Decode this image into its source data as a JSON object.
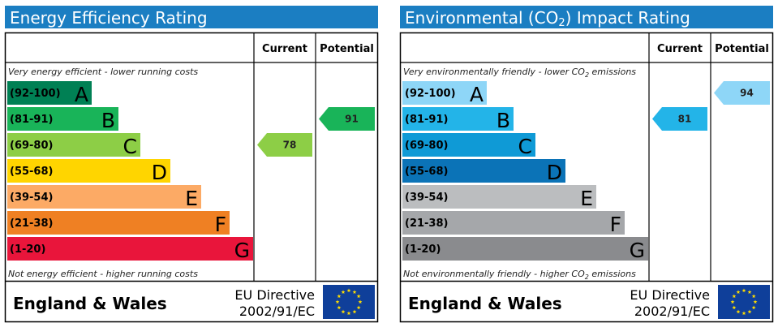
{
  "chart_data": [
    {
      "type": "bar",
      "title": "Energy Efficiency Rating",
      "column_headers": [
        "Current",
        "Potential"
      ],
      "top_note": "Very energy efficient - lower running costs",
      "bottom_note": "Not energy efficient - higher running costs",
      "bands": [
        {
          "range": "(92-100)",
          "letter": "A",
          "color": "#008054"
        },
        {
          "range": "(81-91)",
          "letter": "B",
          "color": "#19b459"
        },
        {
          "range": "(69-80)",
          "letter": "C",
          "color": "#8dce46"
        },
        {
          "range": "(55-68)",
          "letter": "D",
          "color": "#ffd500"
        },
        {
          "range": "(39-54)",
          "letter": "E",
          "color": "#fcaa65"
        },
        {
          "range": "(21-38)",
          "letter": "F",
          "color": "#ef8023"
        },
        {
          "range": "(1-20)",
          "letter": "G",
          "color": "#e9153b"
        }
      ],
      "current": {
        "value": 78,
        "band": "C",
        "color": "#8dce46"
      },
      "potential": {
        "value": 91,
        "band": "B",
        "color": "#19b459"
      },
      "region": "England & Wales",
      "directive_line1": "EU Directive",
      "directive_line2": "2002/91/EC"
    },
    {
      "type": "bar",
      "title": "Environmental (CO2) Impact Rating",
      "title_parts": [
        "Environmental (CO",
        "2",
        ") Impact Rating"
      ],
      "column_headers": [
        "Current",
        "Potential"
      ],
      "top_note": "Very environmentally friendly - lower CO2 emissions",
      "top_note_parts": [
        "Very environmentally friendly - lower CO",
        "2",
        " emissions"
      ],
      "bottom_note": "Not environmentally friendly - higher CO2 emissions",
      "bottom_note_parts": [
        "Not environmentally friendly - higher CO",
        "2",
        " emissions"
      ],
      "bands": [
        {
          "range": "(92-100)",
          "letter": "A",
          "color": "#8ed6f7"
        },
        {
          "range": "(81-91)",
          "letter": "B",
          "color": "#23b4e8"
        },
        {
          "range": "(69-80)",
          "letter": "C",
          "color": "#0f9ad6"
        },
        {
          "range": "(55-68)",
          "letter": "D",
          "color": "#0b73b7"
        },
        {
          "range": "(39-54)",
          "letter": "E",
          "color": "#bbbdbf"
        },
        {
          "range": "(21-38)",
          "letter": "F",
          "color": "#a5a7aa"
        },
        {
          "range": "(1-20)",
          "letter": "G",
          "color": "#8a8b8e"
        }
      ],
      "current": {
        "value": 81,
        "band": "B",
        "color": "#23b4e8"
      },
      "potential": {
        "value": 94,
        "band": "A",
        "color": "#8ed6f7"
      },
      "region": "England & Wales",
      "directive_line1": "EU Directive",
      "directive_line2": "2002/91/EC"
    }
  ],
  "colors": {
    "title_bar": "#1b7ec2",
    "eu_flag": "#0f3f9a",
    "eu_stars": "#ffdd00"
  }
}
